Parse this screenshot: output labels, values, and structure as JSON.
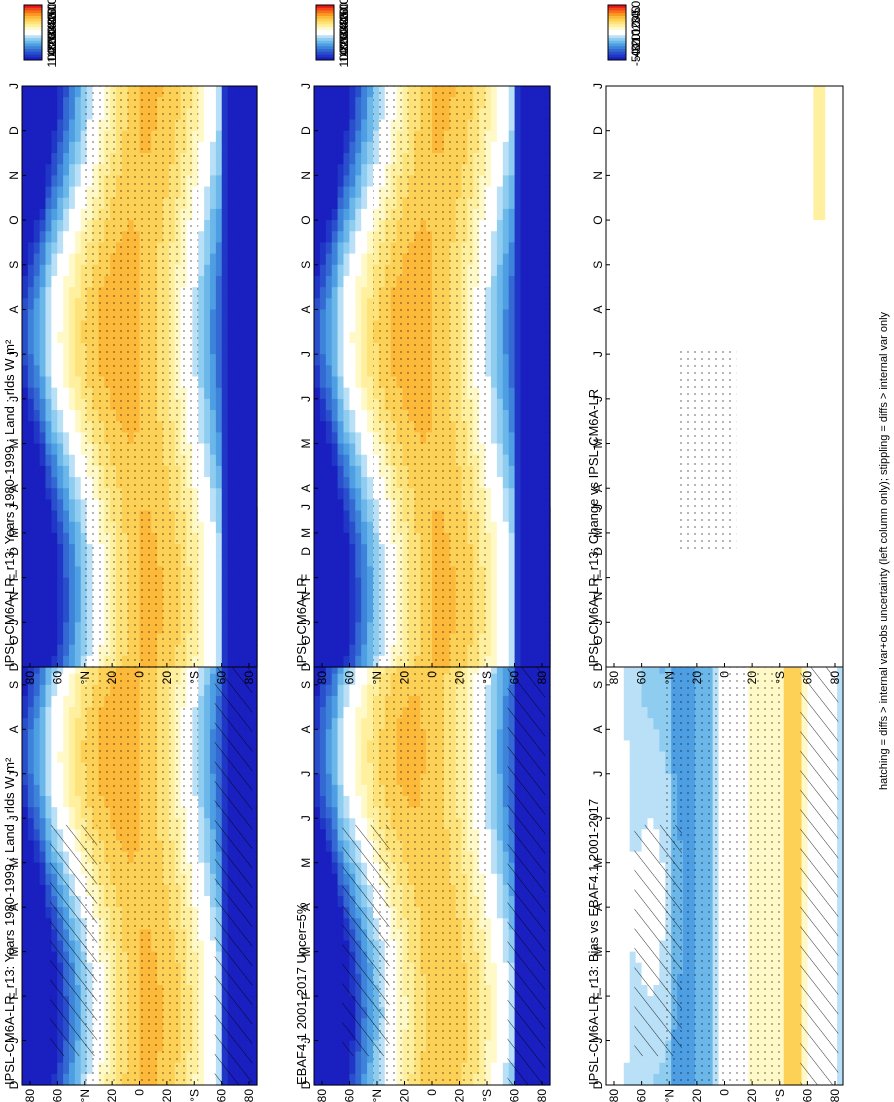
{
  "footer_note": "hatching = diffs > internal var+obs uncertainty (left column only); stippling = diffs > internal var only",
  "chart_data": [
    {
      "type": "heatmap",
      "id": "model-left",
      "title": "IPSL-CM6A-LR_r13: Years 1980-1999 : Land : rlds W m²",
      "months": [
        "D",
        "J",
        "F",
        "M",
        "A",
        "M",
        "J",
        "J",
        "A",
        "S",
        "O",
        "N",
        "D",
        "J"
      ],
      "lat_ticks": [
        "80",
        "60",
        "°N",
        "20",
        "0",
        "20",
        "°S",
        "60",
        "80"
      ],
      "colorbar_labels": [
        "500",
        "460",
        "420",
        "380",
        "340",
        "300",
        "260",
        "220",
        "180",
        "140",
        "100"
      ],
      "colorbar_range": [
        80,
        520
      ],
      "field": "absolute",
      "hatching": true,
      "stippling": true
    },
    {
      "type": "heatmap",
      "id": "obs-left",
      "title": "EBAF4.1 2001-2017 Uncer=5%",
      "months": [
        "D",
        "J",
        "F",
        "M",
        "A",
        "M",
        "J",
        "J",
        "A",
        "S",
        "O",
        "N",
        "D",
        "J"
      ],
      "lat_ticks": [
        "80",
        "60",
        "°N",
        "20",
        "0",
        "20",
        "°S",
        "60",
        "80"
      ],
      "colorbar_labels": [
        "500",
        "460",
        "420",
        "380",
        "340",
        "300",
        "260",
        "220",
        "180",
        "140",
        "100"
      ],
      "colorbar_range": [
        80,
        520
      ],
      "field": "absolute",
      "hatching": true,
      "stippling": true
    },
    {
      "type": "heatmap",
      "id": "bias-left",
      "title": "IPSL-CM6A-LR_r13: Bias vs EBAF4.1 2001-2017",
      "months": [
        "D",
        "J",
        "F",
        "M",
        "A",
        "M",
        "J",
        "J",
        "A",
        "S",
        "O",
        "N",
        "D",
        "J"
      ],
      "lat_ticks": [
        "80",
        "60",
        "°N",
        "20",
        "0",
        "20",
        "°S",
        "60",
        "80"
      ],
      "colorbar_labels": [
        "50",
        "40",
        "30",
        "20",
        "10",
        "0",
        "-10",
        "-20",
        "-30",
        "-40",
        "-50"
      ],
      "colorbar_range": [
        -55,
        55
      ],
      "field": "bias",
      "hatching": true,
      "stippling": true
    },
    {
      "type": "heatmap",
      "id": "model-right",
      "title": "IPSL-CM6A-LR_r13: Years 1980-1999 : Land : rlds W m²",
      "months": [
        "D",
        "J",
        "F",
        "M",
        "A",
        "M",
        "J",
        "J",
        "A",
        "S",
        "O",
        "N",
        "D",
        "J"
      ],
      "lat_ticks": [
        "80",
        "60",
        "°N",
        "20",
        "0",
        "20",
        "°S",
        "60",
        "80"
      ],
      "colorbar_labels": [
        "500",
        "460",
        "420",
        "380",
        "340",
        "300",
        "260",
        "220",
        "180",
        "140",
        "100"
      ],
      "colorbar_range": [
        80,
        520
      ],
      "field": "absolute",
      "hatching": false,
      "stippling": true
    },
    {
      "type": "heatmap",
      "id": "ens-right",
      "title": "IPSL-CM6A-LR",
      "months": [
        "D",
        "J",
        "F",
        "M",
        "A",
        "M",
        "J",
        "J",
        "A",
        "S",
        "O",
        "N",
        "D",
        "J"
      ],
      "lat_ticks": [
        "80",
        "60",
        "°N",
        "20",
        "0",
        "20",
        "°S",
        "60",
        "80"
      ],
      "colorbar_labels": [
        "500",
        "460",
        "420",
        "380",
        "340",
        "300",
        "260",
        "220",
        "180",
        "140",
        "100"
      ],
      "colorbar_range": [
        80,
        520
      ],
      "field": "absolute",
      "hatching": false,
      "stippling": true
    },
    {
      "type": "heatmap",
      "id": "change-right",
      "title": "IPSL-CM6A-LR_r13: Change vs IPSL-CM6A-LR",
      "months": [
        "D",
        "J",
        "F",
        "M",
        "A",
        "M",
        "J",
        "J",
        "A",
        "S",
        "O",
        "N",
        "D",
        "J"
      ],
      "lat_ticks": [
        "80",
        "60",
        "°N",
        "20",
        "0",
        "20",
        "°S",
        "60",
        "80"
      ],
      "colorbar_labels": [
        "50",
        "40",
        "30",
        "20",
        "10",
        "0",
        "-10",
        "-20",
        "-30",
        "-40",
        "-50"
      ],
      "colorbar_range": [
        -55,
        55
      ],
      "field": "change",
      "hatching": false,
      "stippling": true
    }
  ],
  "colors": {
    "palette": [
      "#e8141b",
      "#f24a16",
      "#f7711a",
      "#fb9a22",
      "#fdb93a",
      "#fdd056",
      "#fee27a",
      "#fff09f",
      "#fff9c8",
      "#ffffff",
      "#ffffff",
      "#b9e0f6",
      "#8fcdf0",
      "#6cb7ea",
      "#4e9ee3",
      "#3e83da",
      "#3468d2",
      "#2a4fcc",
      "#2036c7",
      "#1a1fc0"
    ]
  }
}
